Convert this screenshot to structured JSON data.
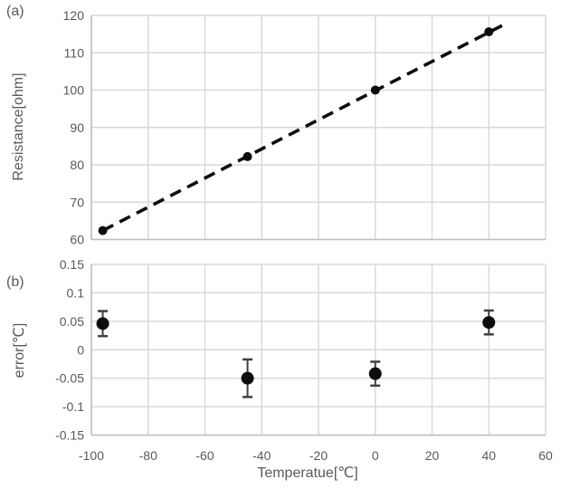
{
  "figure": {
    "panel_a_label": "(a)",
    "panel_b_label": "(b)",
    "x_axis_title": "Temperatue[℃]",
    "panel_a_y_title": "Resistance[ohm]",
    "panel_b_y_title": "error[℃]"
  },
  "colors": {
    "text": "#595959",
    "gridline": "#d9d9d9",
    "axis_line": "#bfbfbf",
    "marker": "#0d0d0d",
    "trendline": "#0d0d0d",
    "error_bar": "#404040",
    "background": "#ffffff"
  },
  "chart_data": [
    {
      "id": "panel_a",
      "type": "scatter",
      "title": "",
      "xlabel": "Temperatue[℃]",
      "ylabel": "Resistance[ohm]",
      "x": [
        -96,
        -45,
        0,
        40
      ],
      "y": [
        62.4,
        82.2,
        100,
        115.6
      ],
      "trendline": {
        "style": "dashed",
        "x": [
          -96,
          46
        ],
        "y": [
          62.4,
          117.8
        ]
      },
      "xlim": [
        -100,
        60
      ],
      "ylim": [
        60,
        120
      ],
      "xticks": [
        "-100",
        "-80",
        "-60",
        "-40",
        "-20",
        "0",
        "20",
        "40",
        "60"
      ],
      "yticks": [
        "120",
        "110",
        "100",
        "90",
        "80",
        "70",
        "60"
      ],
      "show_x_tick_labels": false,
      "grid": true,
      "legend": "none",
      "marker_radius": 5
    },
    {
      "id": "panel_b",
      "type": "scatter-errorbar",
      "title": "",
      "xlabel": "Temperatue[℃]",
      "ylabel": "error[℃]",
      "x": [
        -96,
        -45,
        0,
        40
      ],
      "y": [
        0.046,
        -0.05,
        -0.042,
        0.048
      ],
      "yerr": [
        0.022,
        0.033,
        0.021,
        0.021
      ],
      "xlim": [
        -100,
        60
      ],
      "ylim": [
        -0.15,
        0.15
      ],
      "xticks": [
        "-100",
        "-80",
        "-60",
        "-40",
        "-20",
        "0",
        "20",
        "40",
        "60"
      ],
      "yticks": [
        "0.15",
        "0.1",
        "0.05",
        "0",
        "-0.05",
        "-0.1",
        "-0.15"
      ],
      "show_x_tick_labels": true,
      "grid": true,
      "legend": "none",
      "marker_radius": 7
    }
  ]
}
